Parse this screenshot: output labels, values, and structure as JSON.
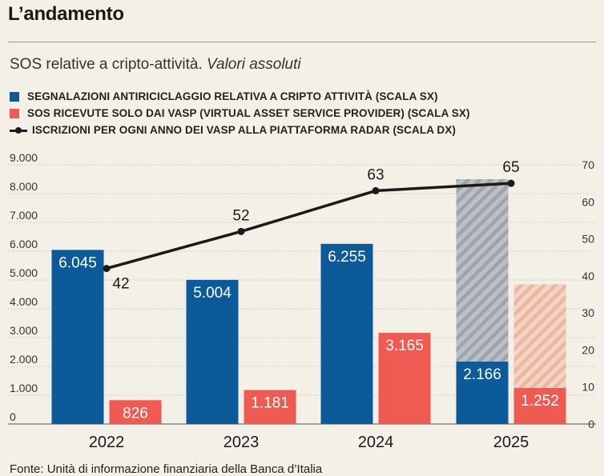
{
  "header": {
    "title": "L’andamento",
    "subtitle_main": "SOS relative a cripto-attività. ",
    "subtitle_italic": "Valori assoluti"
  },
  "footer": {
    "source": "Fonte: Unità di informazione finanziaria della Banca d’Italia"
  },
  "colors": {
    "blue": "#0d5a9b",
    "red": "#ef5b52",
    "line": "#1a1a1a",
    "grid": "#c9c5ba",
    "hatch_blue": "#aeb3b8",
    "hatch_red": "#f0c2ad"
  },
  "chart_data": {
    "type": "bar",
    "title": "L’andamento",
    "categories": [
      "2022",
      "2023",
      "2024",
      "2025"
    ],
    "series": [
      {
        "name": "SEGNALAZIONI ANTIRICICLAGGIO RELATIVA A CRIPTO ATTIVITÀ (SCALA SX)",
        "axis": "left",
        "color": "#0d5a9b",
        "values": [
          6045,
          5004,
          6255,
          2166
        ],
        "labels": [
          "6.045",
          "5.004",
          "6.255",
          "2.166"
        ],
        "projected": [
          null,
          null,
          null,
          8500
        ]
      },
      {
        "name": "SOS RICEVUTE SOLO DAI VASP (VIRTUAL ASSET SERVICE PROVIDER) (SCALA SX)",
        "axis": "left",
        "color": "#ef5b52",
        "values": [
          826,
          1181,
          3165,
          1252
        ],
        "labels": [
          "826",
          "1.181",
          "3.165",
          "1.252"
        ],
        "projected": [
          null,
          null,
          null,
          4850
        ]
      },
      {
        "name": "ISCRIZIONI PER OGNI ANNO DEI VASP ALLA PIATTAFORMA RADAR (SCALA DX)",
        "axis": "right",
        "type": "line",
        "color": "#1a1a1a",
        "values": [
          42,
          52,
          63,
          65
        ],
        "labels": [
          "42",
          "52",
          "63",
          "65"
        ]
      }
    ],
    "y_left": {
      "range": [
        0,
        9000
      ],
      "ticks": [
        0,
        1000,
        2000,
        3000,
        4000,
        5000,
        6000,
        7000,
        8000,
        9000
      ],
      "tick_labels": [
        "0",
        "1.000",
        "2.000",
        "3.000",
        "4.000",
        "5.000",
        "6.000",
        "7.000",
        "8.000",
        "9.000"
      ]
    },
    "y_right": {
      "range": [
        0,
        70
      ],
      "ticks": [
        0,
        10,
        20,
        30,
        40,
        50,
        60,
        70
      ],
      "tick_labels": [
        "0",
        "10",
        "20",
        "30",
        "40",
        "50",
        "60",
        "70"
      ]
    },
    "grid": true,
    "legend_position": "top-left"
  }
}
